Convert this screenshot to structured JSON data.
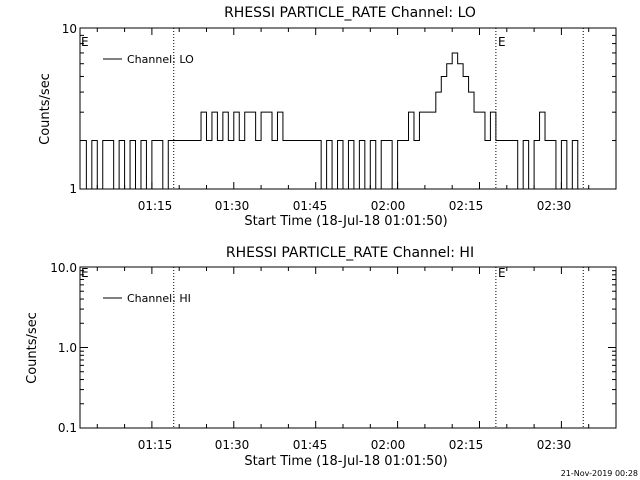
{
  "chart_data": [
    {
      "type": "line",
      "title": "RHESSI PARTICLE_RATE Channel: LO",
      "xlabel": "Start Time (18-Jul-18 01:01:50)",
      "ylabel": "Counts/sec",
      "y_scale": "log",
      "ylim": [
        1,
        10
      ],
      "ytick_labels": [
        "1",
        "10"
      ],
      "xlim": [
        "01:01:50",
        "02:40:00"
      ],
      "xtick_labels": [
        "01:15",
        "01:30",
        "01:45",
        "02:00",
        "02:15",
        "02:30"
      ],
      "xticks_minutes": [
        75,
        90,
        105,
        120,
        135,
        150
      ],
      "vlines_minutes": [
        79,
        138,
        154
      ],
      "eclipse_marks": [
        {
          "label": "E",
          "at_minutes": 62
        },
        {
          "label": "E",
          "at_minutes": 138
        }
      ],
      "legend": {
        "position": "top-left",
        "entries": [
          "Channel: LO"
        ]
      },
      "series": [
        {
          "name": "Channel: LO",
          "x": [
            62,
            63,
            64,
            65,
            66,
            67,
            68,
            69,
            70,
            71,
            72,
            73,
            74,
            75,
            76,
            77,
            78,
            79,
            81,
            83,
            84,
            85,
            86,
            87,
            88,
            89,
            90,
            91,
            92,
            93,
            94,
            95,
            96,
            97,
            98,
            99,
            100,
            101,
            102,
            103,
            104,
            105,
            106,
            107,
            108,
            109,
            110,
            111,
            112,
            113,
            114,
            115,
            116,
            117,
            118,
            119,
            120,
            121,
            122,
            123,
            124,
            125,
            126,
            127,
            128,
            129,
            130,
            131,
            132,
            133,
            134,
            135,
            136,
            137,
            138,
            140,
            141,
            142,
            143,
            144,
            145,
            146,
            147,
            148,
            149,
            150,
            151,
            152,
            153,
            154
          ],
          "y": [
            2,
            1,
            2,
            1,
            2,
            2,
            1,
            2,
            1,
            2,
            1,
            2,
            1,
            2,
            2,
            1,
            2,
            2,
            2,
            2,
            3,
            2,
            3,
            2,
            3,
            2,
            3,
            2,
            3,
            3,
            2,
            3,
            3,
            2,
            3,
            2,
            2,
            2,
            2,
            2,
            2,
            2,
            1,
            2,
            1,
            2,
            1,
            2,
            1,
            2,
            1,
            2,
            1,
            2,
            2,
            1,
            2,
            2,
            3,
            2,
            3,
            3,
            3,
            4,
            5,
            6,
            7,
            6,
            5,
            4,
            3,
            3,
            2,
            3,
            2,
            2,
            2,
            1,
            2,
            1,
            2,
            3,
            2,
            2,
            1,
            2,
            1,
            2,
            1,
            1
          ]
        }
      ]
    },
    {
      "type": "line",
      "title": "RHESSI PARTICLE_RATE Channel: HI",
      "xlabel": "Start Time (18-Jul-18 01:01:50)",
      "ylabel": "Counts/sec",
      "y_scale": "log",
      "ylim": [
        0.1,
        10
      ],
      "ytick_labels": [
        "0.1",
        "1.0",
        "10.0"
      ],
      "xlim": [
        "01:01:50",
        "02:40:00"
      ],
      "xtick_labels": [
        "01:15",
        "01:30",
        "01:45",
        "02:00",
        "02:15",
        "02:30"
      ],
      "xticks_minutes": [
        75,
        90,
        105,
        120,
        135,
        150
      ],
      "vlines_minutes": [
        79,
        138,
        154
      ],
      "eclipse_marks": [
        {
          "label": "E",
          "at_minutes": 62
        },
        {
          "label": "E",
          "at_minutes": 138
        }
      ],
      "legend": {
        "position": "top-left",
        "entries": [
          "Channel: HI"
        ]
      },
      "series": [
        {
          "name": "Channel: HI",
          "x": [],
          "y": []
        }
      ]
    }
  ],
  "footer": {
    "timestamp": "21-Nov-2019 00:28"
  }
}
